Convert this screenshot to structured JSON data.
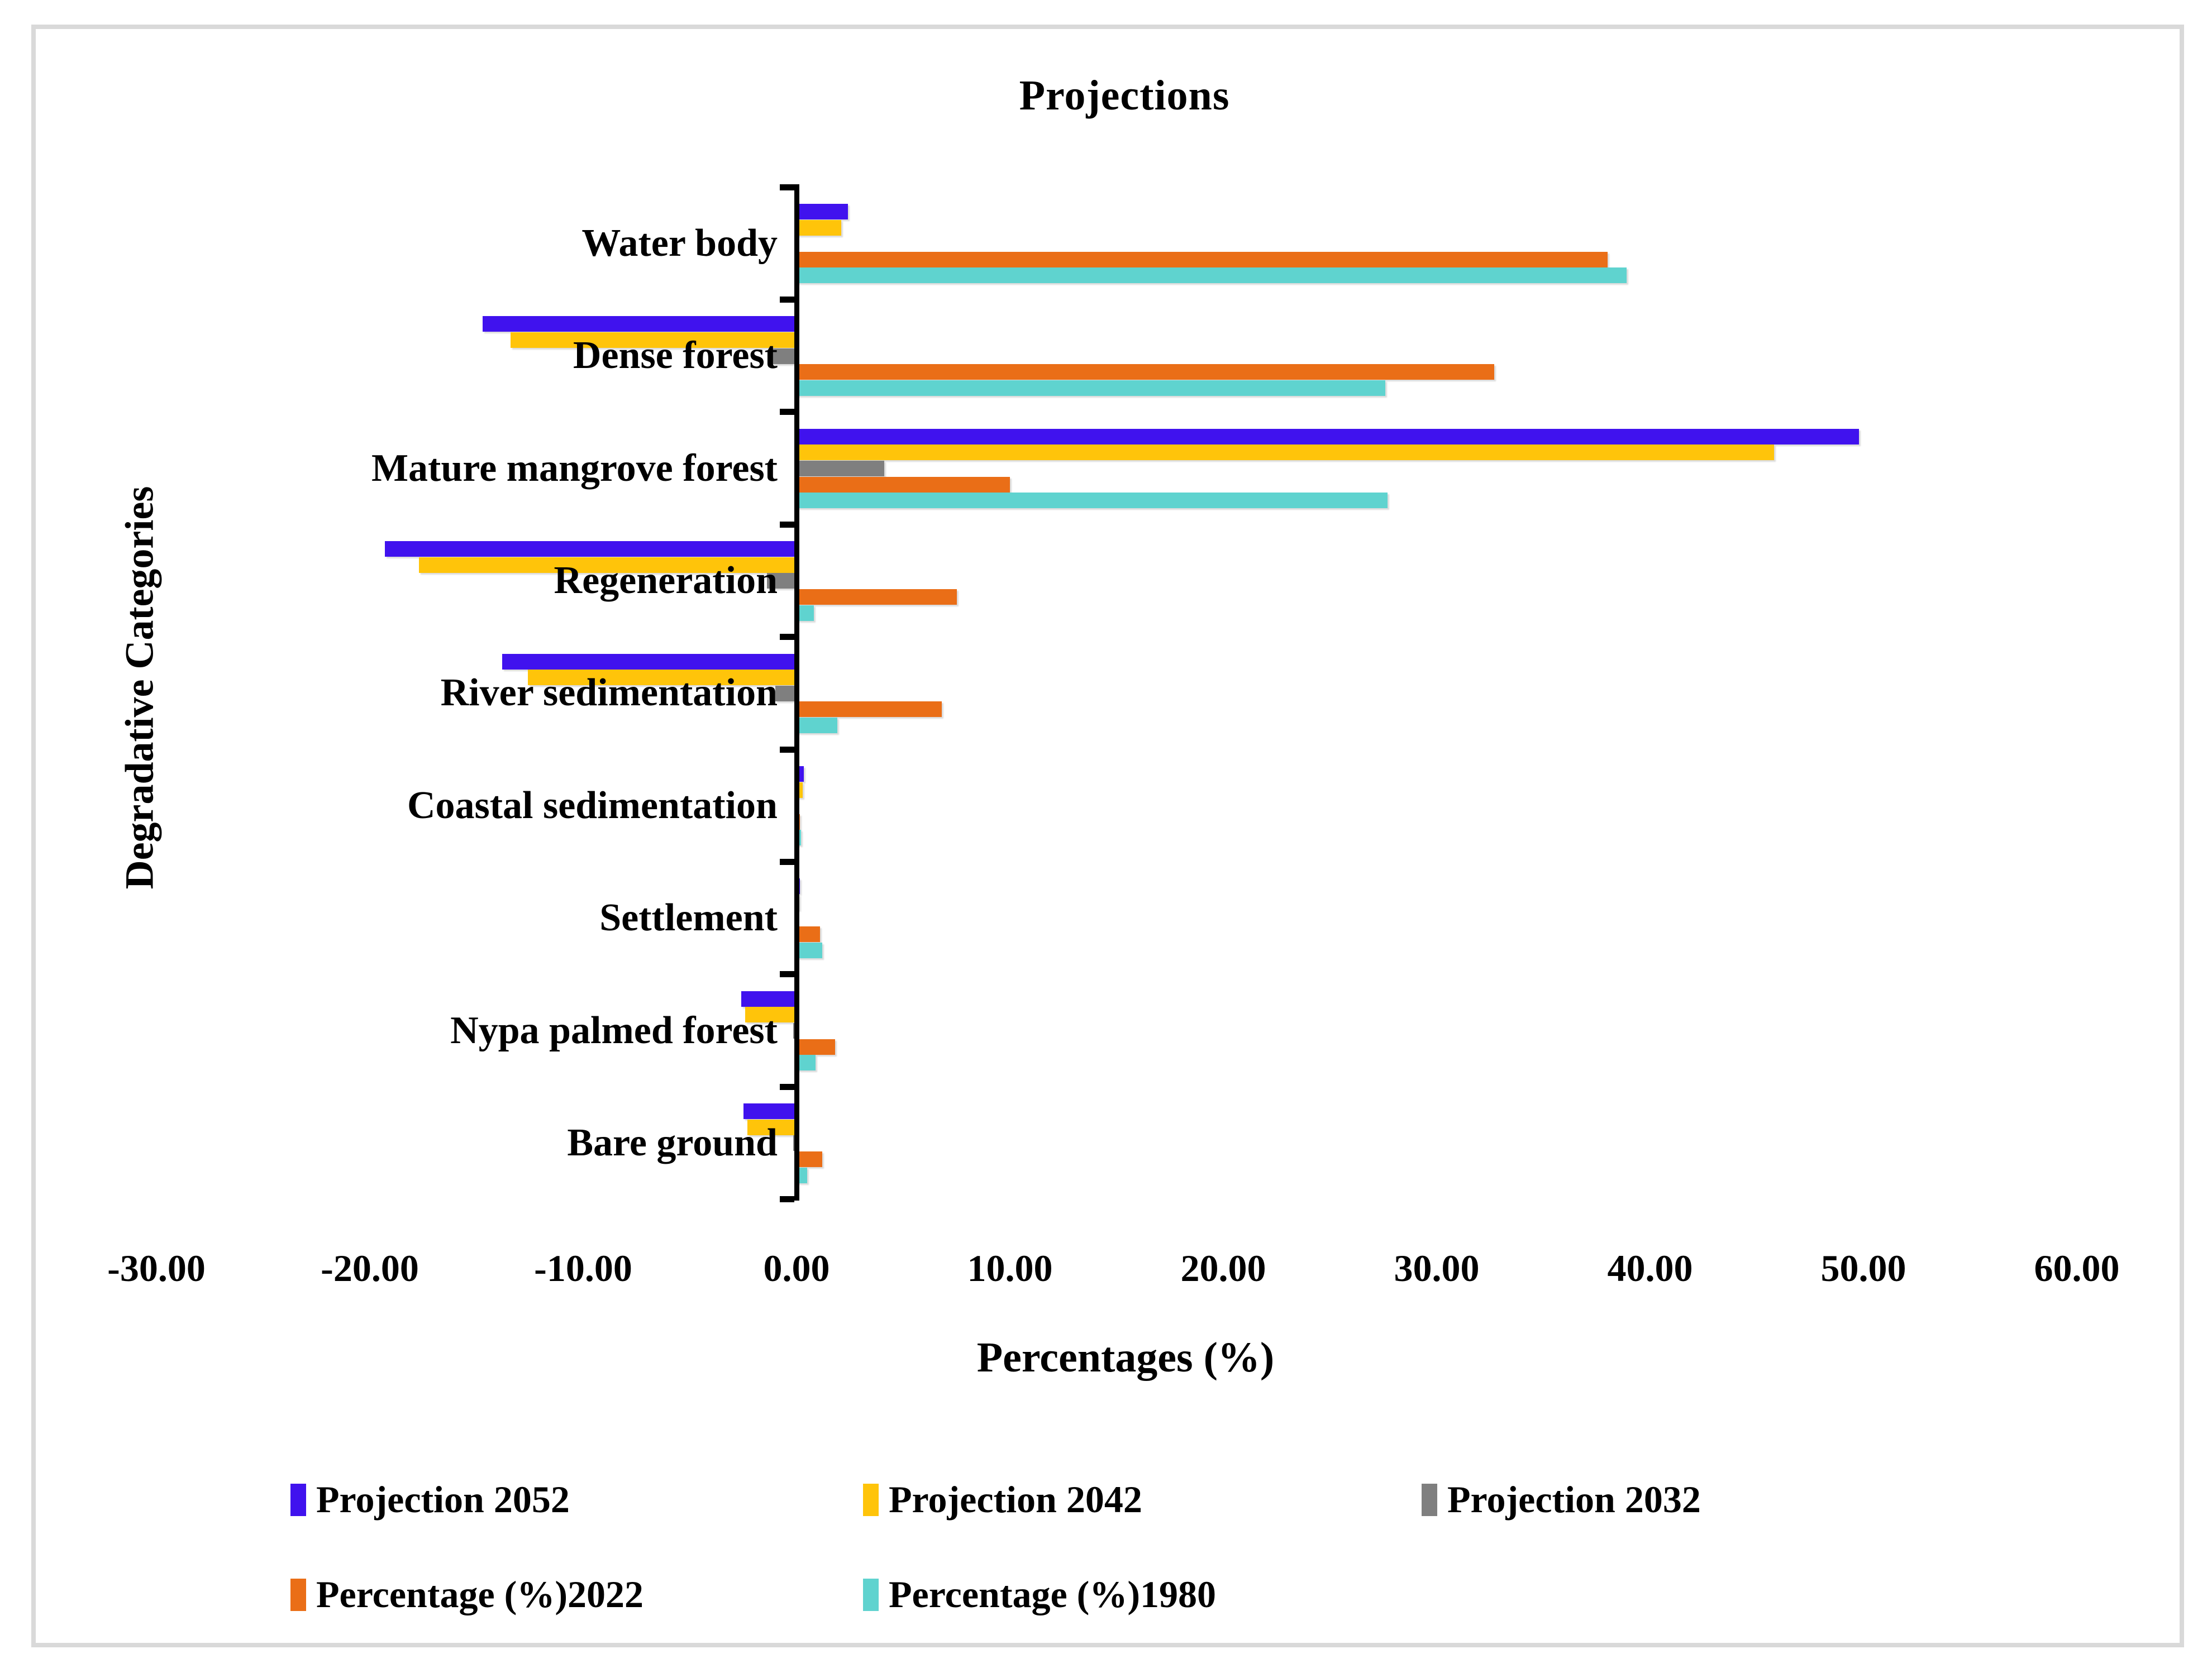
{
  "title": "Projections",
  "x_axis_title": "Percentages (%)",
  "y_axis_title": "Degradative Categories",
  "chart_data": {
    "type": "bar",
    "orientation": "horizontal",
    "title": "Projections",
    "xlabel": "Percentages (%)",
    "ylabel": "Degradative Categories",
    "xlim": [
      -30,
      60
    ],
    "grid": false,
    "legend_position": "bottom",
    "categories": [
      "Water body",
      "Dense forest",
      "Mature mangrove forest",
      "Regeneration",
      "River sedimentation",
      "Coastal sedimentation",
      "Settlement",
      "Nypa palmed forest",
      "Bare ground"
    ],
    "series": [
      {
        "name": "Projection 2052",
        "color": "#4012ee",
        "values": [
          2.4,
          -14.7,
          49.8,
          -19.3,
          -13.8,
          0.33,
          0.15,
          -2.6,
          -2.5
        ]
      },
      {
        "name": "Projection 2042",
        "color": "#ffc40a",
        "values": [
          2.1,
          -13.4,
          45.8,
          -17.7,
          -12.6,
          0.3,
          0.12,
          -2.4,
          -2.3
        ]
      },
      {
        "name": "Projection 2032",
        "color": "#7f7f7f",
        "values": [
          0.0,
          -1.2,
          4.1,
          -1.4,
          -1.0,
          0.0,
          0.0,
          -0.15,
          -0.15
        ]
      },
      {
        "name": "Percentage (%)2022",
        "color": "#ea6e17",
        "values": [
          38.0,
          32.7,
          10.0,
          7.5,
          6.8,
          0.15,
          1.1,
          1.8,
          1.2
        ]
      },
      {
        "name": "Percentage (%)1980",
        "color": "#5fd3cf",
        "values": [
          38.9,
          27.6,
          27.7,
          0.8,
          1.9,
          0.2,
          1.2,
          0.9,
          0.5
        ]
      }
    ],
    "x_ticks": [
      {
        "value": -30,
        "label": "-30.00"
      },
      {
        "value": -20,
        "label": "-20.00"
      },
      {
        "value": -10,
        "label": "-10.00"
      },
      {
        "value": 0,
        "label": "0.00"
      },
      {
        "value": 10,
        "label": "10.00"
      },
      {
        "value": 20,
        "label": "20.00"
      },
      {
        "value": 30,
        "label": "30.00"
      },
      {
        "value": 40,
        "label": "40.00"
      },
      {
        "value": 50,
        "label": "50.00"
      },
      {
        "value": 60,
        "label": "60.00"
      }
    ]
  },
  "legend": {
    "rows": [
      {
        "y": 2686,
        "items": [
          {
            "series": 0,
            "x": 520
          },
          {
            "series": 1,
            "x": 1545
          },
          {
            "series": 2,
            "x": 2545
          }
        ]
      },
      {
        "y": 2856,
        "items": [
          {
            "series": 3,
            "x": 520
          },
          {
            "series": 4,
            "x": 1545
          }
        ]
      }
    ]
  },
  "frame_color": "#d9d9d9",
  "axis_color": "#000000"
}
